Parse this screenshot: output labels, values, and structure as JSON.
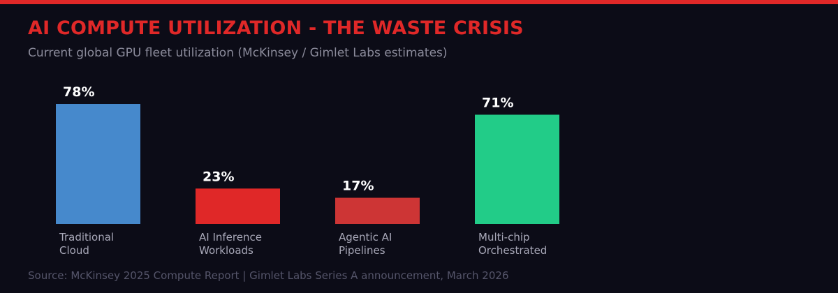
{
  "header": {
    "title": "AI COMPUTE UTILIZATION - THE WASTE CRISIS",
    "subtitle": "Current global GPU fleet utilization (McKinsey / Gimlet Labs estimates)"
  },
  "footer": {
    "source": "Source: McKinsey 2025 Compute Report | Gimlet Labs Series A announcement, March 2026"
  },
  "colors": {
    "accent": "#e02828",
    "background": "#0c0c17",
    "value_label": "#ffffff",
    "category_label": "#a8a8b8"
  },
  "chart_data": {
    "type": "bar",
    "title": "AI COMPUTE UTILIZATION - THE WASTE CRISIS",
    "xlabel": "",
    "ylabel": "",
    "ylim": [
      0,
      100
    ],
    "grid": false,
    "unit": "%",
    "categories": [
      [
        "Traditional",
        "Cloud"
      ],
      [
        "AI Inference",
        "Workloads"
      ],
      [
        "Agentic AI",
        "Pipelines"
      ],
      [
        "Multi-chip",
        "Orchestrated"
      ]
    ],
    "values": [
      78,
      23,
      17,
      71
    ],
    "value_labels": [
      "78%",
      "23%",
      "17%",
      "71%"
    ],
    "bar_colors": [
      "#4689cc",
      "#e02828",
      "#cd3535",
      "#22cc88"
    ]
  }
}
